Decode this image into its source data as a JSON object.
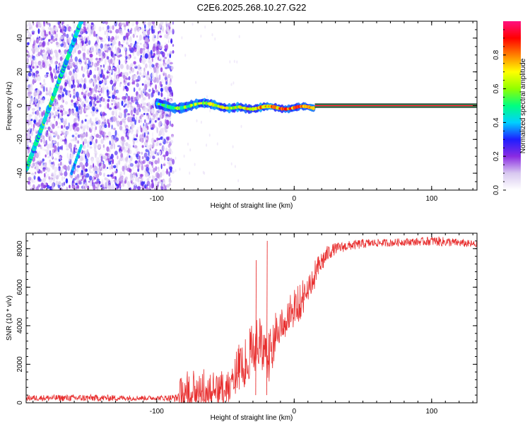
{
  "title": "C2E6.2025.268.10.27.G22",
  "chart_data": [
    {
      "type": "heatmap",
      "name": "spectrogram",
      "xlabel": "Height of straight line (km)",
      "ylabel": "Frequency (Hz)",
      "xlim": [
        -195,
        133
      ],
      "ylim": [
        -50,
        50
      ],
      "x_ticks": [
        -100,
        0,
        100
      ],
      "x_tick_labels": [
        "-100",
        "0",
        "100"
      ],
      "y_ticks": [
        -40,
        -20,
        0,
        20,
        40
      ],
      "y_tick_labels": [
        "-40",
        "-20",
        "0",
        "20",
        "40"
      ],
      "colorbar": {
        "label": "Normalized spectral amplitude",
        "range": [
          0,
          1
        ],
        "ticks": [
          0.0,
          0.2,
          0.4,
          0.6,
          0.8
        ],
        "tick_labels": [
          "0.0",
          "0.2",
          "0.4",
          "0.6",
          "0.8"
        ],
        "colors": [
          "#ffffff",
          "#d8c8f0",
          "#8a2be2",
          "#1e1eff",
          "#00d0ff",
          "#00ff80",
          "#90ff00",
          "#ffff00",
          "#ff8000",
          "#ff0000",
          "#ff1080"
        ]
      },
      "features": {
        "noise_region_x": [
          -195,
          -88
        ],
        "diagonal_trace": [
          [
            -195,
            -38
          ],
          [
            -155,
            50
          ]
        ],
        "trace_segment": [
          [
            -162,
            -40
          ],
          [
            -155,
            -24
          ]
        ],
        "carrier_start_km": -100,
        "carrier_strong_from_km": 15,
        "carrier_frequency_hz": 0
      }
    },
    {
      "type": "line",
      "name": "snr",
      "xlabel": "Height of straight line (km)",
      "ylabel": "SNR (10 * v/v)",
      "xlim": [
        -195,
        133
      ],
      "ylim": [
        0,
        8800
      ],
      "x_ticks": [
        -100,
        0,
        100
      ],
      "x_tick_labels": [
        "-100",
        "0",
        "100"
      ],
      "y_ticks": [
        0,
        2000,
        4000,
        6000,
        8000
      ],
      "y_tick_labels": [
        "0",
        "2000",
        "4000",
        "6000",
        "8000"
      ],
      "color": "#e83030",
      "series": [
        {
          "name": "SNR envelope",
          "x": [
            -195,
            -150,
            -100,
            -85,
            -82,
            -70,
            -60,
            -50,
            -45,
            -40,
            -35,
            -30,
            -26,
            -22,
            -18,
            -15,
            -12,
            -8,
            -5,
            0,
            5,
            10,
            15,
            20,
            25,
            30,
            40,
            50,
            60,
            70,
            80,
            90,
            100,
            110,
            120,
            133
          ],
          "y": [
            250,
            250,
            250,
            250,
            700,
            750,
            850,
            800,
            1400,
            1900,
            2200,
            2900,
            3300,
            2700,
            2600,
            3300,
            4000,
            4300,
            4500,
            5000,
            5300,
            6100,
            6700,
            7300,
            7800,
            8000,
            8150,
            8250,
            8300,
            8300,
            8350,
            8350,
            8400,
            8350,
            8300,
            8200
          ],
          "jitter": [
            150,
            180,
            120,
            200,
            900,
            1000,
            900,
            900,
            1000,
            1200,
            1300,
            1300,
            1400,
            1300,
            1400,
            1200,
            1100,
            1000,
            1000,
            900,
            900,
            800,
            700,
            600,
            400,
            300,
            250,
            250,
            200,
            200,
            200,
            200,
            250,
            250,
            200,
            200
          ]
        }
      ],
      "annotations": [
        {
          "x": -20,
          "y": 8400,
          "label": "spike"
        },
        {
          "x": -28,
          "y": 7400,
          "label": "spike"
        }
      ]
    }
  ]
}
